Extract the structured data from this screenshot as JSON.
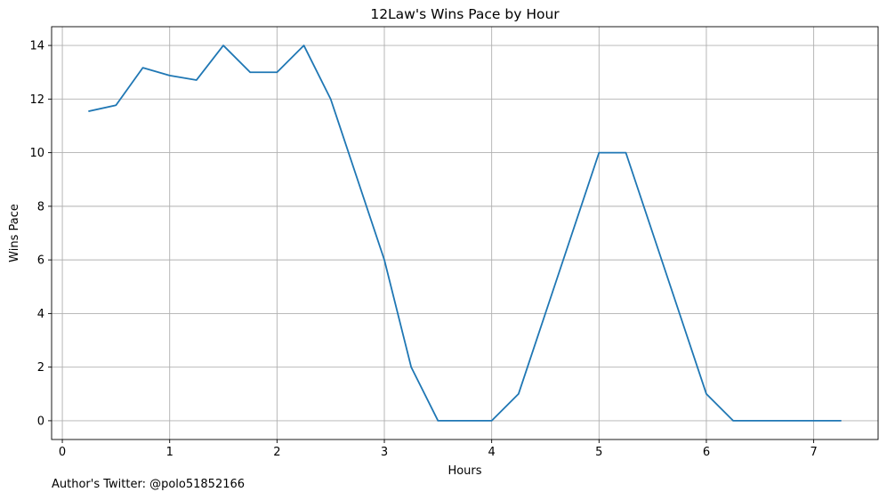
{
  "chart_data": {
    "type": "line",
    "title": "12Law's Wins Pace by Hour",
    "xlabel": "Hours",
    "ylabel": "Wins Pace",
    "xlim": [
      -0.1,
      7.6
    ],
    "ylim": [
      -0.7,
      14.7
    ],
    "xticks": [
      0,
      1,
      2,
      3,
      4,
      5,
      6,
      7
    ],
    "yticks": [
      0,
      2,
      4,
      6,
      8,
      10,
      12,
      14
    ],
    "grid": true,
    "series": [
      {
        "color": "#1f77b4",
        "x": [
          0.25,
          0.5,
          0.75,
          1.0,
          1.25,
          1.5,
          1.75,
          2.0,
          2.25,
          2.5,
          2.75,
          3.0,
          3.25,
          3.5,
          3.75,
          4.0,
          4.25,
          4.5,
          4.75,
          5.0,
          5.25,
          5.5,
          5.75,
          6.0,
          6.25,
          6.5,
          6.75,
          7.0,
          7.25
        ],
        "y": [
          11.55,
          11.77,
          13.17,
          12.88,
          12.71,
          14.0,
          13.0,
          13.0,
          14.0,
          12.0,
          9.0,
          6.0,
          2.0,
          0.0,
          0.0,
          0.0,
          1.0,
          4.0,
          7.0,
          10.0,
          10.0,
          7.0,
          4.0,
          1.0,
          0.0,
          0.0,
          0.0,
          0.0,
          0.0
        ]
      }
    ]
  },
  "footer": {
    "text": "Author's Twitter: @polo51852166"
  }
}
